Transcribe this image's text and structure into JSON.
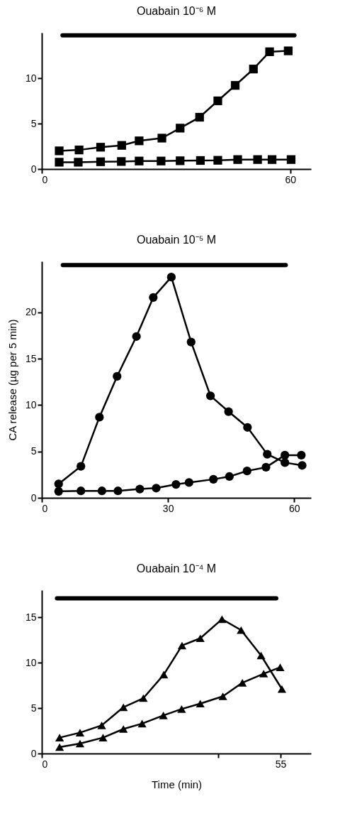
{
  "chart_data": [
    {
      "type": "line",
      "title": "Ouabain 10⁻⁶ M",
      "marker": "square",
      "xlim": [
        0,
        65
      ],
      "ylim": [
        0,
        15
      ],
      "xticks": [
        0,
        60
      ],
      "yticks": [
        0,
        5,
        10
      ],
      "tick_labels": true,
      "series": [
        {
          "type": "line",
          "marker": "none",
          "color": "#000000",
          "x": [
            5,
            61
          ],
          "values": [
            14.7,
            14.7
          ]
        },
        {
          "color": "#000000",
          "x": [
            4.2,
            9.0,
            14.2,
            19.3,
            23.5,
            29.0,
            33.4,
            38.1,
            42.5,
            46.7,
            51.1,
            55.0,
            59.5
          ],
          "values": [
            2.0,
            2.1,
            2.4,
            2.6,
            3.1,
            3.4,
            4.5,
            5.7,
            7.5,
            9.2,
            11.0,
            12.9,
            13.0
          ]
        },
        {
          "color": "#000000",
          "x": [
            4.2,
            8.8,
            14.2,
            19.2,
            23.5,
            28.8,
            33.4,
            38.3,
            42.5,
            47.3,
            52.1,
            55.6,
            60.2
          ],
          "values": [
            0.75,
            0.75,
            0.8,
            0.83,
            0.88,
            0.88,
            0.91,
            0.94,
            0.96,
            1.04,
            1.04,
            1.04,
            1.04
          ]
        }
      ]
    },
    {
      "type": "line",
      "title": "Ouabain 10⁻⁵ M",
      "ylabel": "CA release (µg per 5 min)",
      "marker": "circle",
      "xlim": [
        0,
        64
      ],
      "ylim": [
        0,
        25.5
      ],
      "xticks": [
        0,
        30,
        60
      ],
      "yticks": [
        0,
        5,
        10,
        15,
        20
      ],
      "series": [
        {
          "type": "line",
          "marker": "none",
          "color": "#000000",
          "x": [
            5,
            58
          ],
          "values": [
            25.1,
            25.1
          ]
        },
        {
          "color": "#000000",
          "x": [
            4.0,
            9.3,
            13.7,
            17.9,
            22.5,
            26.5,
            30.8,
            35.5,
            40.1,
            44.4,
            48.9,
            53.6,
            57.8,
            61.9
          ],
          "values": [
            1.5,
            3.4,
            8.7,
            13.1,
            17.4,
            21.6,
            23.8,
            16.8,
            11.0,
            9.3,
            7.6,
            4.7,
            3.8,
            3.5
          ]
        },
        {
          "color": "#000000",
          "x": [
            4.0,
            9.3,
            14.3,
            18.1,
            23.3,
            27.2,
            31.9,
            35.0,
            40.8,
            44.6,
            48.8,
            53.3,
            57.8,
            61.7
          ],
          "values": [
            0.7,
            0.75,
            0.75,
            0.75,
            0.95,
            1.05,
            1.45,
            1.65,
            2.0,
            2.3,
            2.9,
            3.3,
            4.6,
            4.6
          ]
        }
      ]
    },
    {
      "type": "line",
      "title": "Ouabain 10⁻⁴ M",
      "xlabel": "Time (min)",
      "marker": "triangle",
      "xlim": [
        0,
        62
      ],
      "ylim": [
        0,
        18
      ],
      "xticks": [
        0,
        {
          "value": 40.6,
          "label": null
        },
        55
      ],
      "yticks": [
        0,
        5,
        10,
        15
      ],
      "series": [
        {
          "type": "line",
          "marker": "none",
          "color": "#000000",
          "x": [
            3.5,
            54
          ],
          "values": [
            17.1,
            17.1
          ]
        },
        {
          "color": "#000000",
          "x": [
            4.1,
            8.8,
            13.8,
            18.8,
            23.4,
            28.1,
            32.3,
            36.5,
            41.5,
            45.9,
            50.5,
            55.3
          ],
          "values": [
            1.75,
            2.3,
            3.1,
            5.1,
            6.1,
            8.7,
            11.9,
            12.7,
            14.8,
            13.6,
            10.8,
            7.1
          ]
        },
        {
          "color": "#000000",
          "x": [
            4.1,
            8.8,
            14.1,
            18.8,
            23.1,
            28.0,
            32.2,
            36.5,
            41.7,
            46.2,
            51.1,
            54.9
          ],
          "values": [
            0.7,
            1.1,
            1.75,
            2.7,
            3.3,
            4.2,
            4.9,
            5.5,
            6.3,
            7.8,
            8.8,
            9.5
          ]
        }
      ]
    }
  ]
}
